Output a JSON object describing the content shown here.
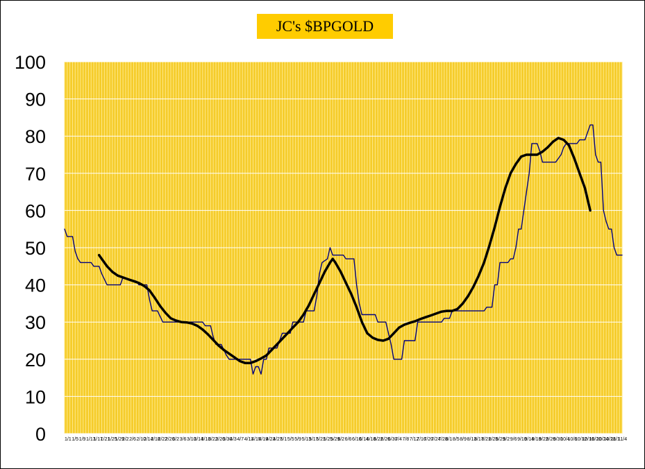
{
  "chart_data": {
    "type": "line",
    "title": "JC's $BPGOLD",
    "xlabel": "",
    "ylabel": "",
    "ylim": [
      0,
      100
    ],
    "yticks": [
      0,
      10,
      20,
      30,
      40,
      50,
      60,
      70,
      80,
      90,
      100
    ],
    "grid": true,
    "colors": {
      "plot_bg": "#f5cc2a",
      "vertical_grid": "#ffe98a",
      "horizontal_grid": "#ffffff",
      "thin_line": "#000080",
      "thick_line": "#000000",
      "title_bg": "#ffcc00"
    },
    "x_tick_labels": [
      "1/1",
      "1/5",
      "1/9",
      "1/13",
      "1/17",
      "1/21",
      "1/25",
      "1/29",
      "2/2",
      "2/6",
      "2/10",
      "2/14",
      "2/18",
      "2/22",
      "2/26",
      "3/2",
      "3/6",
      "3/10",
      "3/14",
      "3/18",
      "3/22",
      "3/26",
      "3/30",
      "4/3",
      "4/7",
      "4/11",
      "4/15",
      "4/19",
      "4/23",
      "4/27",
      "5/1",
      "5/5",
      "5/9",
      "5/13",
      "5/17",
      "5/21",
      "5/25",
      "5/29",
      "6/2",
      "6/6",
      "6/10",
      "6/14",
      "6/18",
      "6/22",
      "6/26",
      "6/30",
      "7/4",
      "7/8",
      "7/12",
      "7/16",
      "7/20",
      "7/24",
      "7/28",
      "8/1",
      "8/5",
      "8/9",
      "8/13",
      "8/17",
      "8/21",
      "8/25",
      "8/29",
      "9/2",
      "9/6",
      "9/10",
      "9/14",
      "9/18",
      "9/22",
      "9/26",
      "9/30",
      "10/4",
      "10/8",
      "10/12",
      "10/16",
      "10/20",
      "10/24",
      "10/28",
      "11/1",
      "11/4"
    ],
    "series": [
      {
        "style": "thin",
        "points": [
          [
            0,
            55
          ],
          [
            1,
            53
          ],
          [
            3,
            53
          ],
          [
            4,
            49
          ],
          [
            5,
            47
          ],
          [
            6,
            46
          ],
          [
            10,
            46
          ],
          [
            11,
            45
          ],
          [
            13,
            45
          ],
          [
            14,
            43
          ],
          [
            16,
            40
          ],
          [
            21,
            40
          ],
          [
            22,
            42
          ],
          [
            27,
            41
          ],
          [
            28,
            40
          ],
          [
            31,
            40
          ],
          [
            32,
            36
          ],
          [
            33,
            33
          ],
          [
            35,
            33
          ],
          [
            37,
            30
          ],
          [
            52,
            30
          ],
          [
            53,
            29
          ],
          [
            55,
            29
          ],
          [
            56,
            26
          ],
          [
            57,
            24
          ],
          [
            59,
            24
          ],
          [
            61,
            21
          ],
          [
            62,
            20
          ],
          [
            67,
            20
          ],
          [
            70,
            20
          ],
          [
            71,
            16
          ],
          [
            72,
            18
          ],
          [
            73,
            18
          ],
          [
            74,
            16
          ],
          [
            75,
            20
          ],
          [
            76,
            20
          ],
          [
            77,
            23
          ],
          [
            80,
            23
          ],
          [
            81,
            25
          ],
          [
            82,
            27
          ],
          [
            85,
            27
          ],
          [
            86,
            30
          ],
          [
            90,
            30
          ],
          [
            91,
            33
          ],
          [
            94,
            33
          ],
          [
            95,
            37
          ],
          [
            96,
            43
          ],
          [
            97,
            46
          ],
          [
            99,
            47
          ],
          [
            100,
            50
          ],
          [
            101,
            48
          ],
          [
            105,
            48
          ],
          [
            106,
            47
          ],
          [
            109,
            47
          ],
          [
            110,
            40
          ],
          [
            111,
            35
          ],
          [
            112,
            32
          ],
          [
            117,
            32
          ],
          [
            118,
            30
          ],
          [
            121,
            30
          ],
          [
            122,
            27
          ],
          [
            123,
            24
          ],
          [
            124,
            20
          ],
          [
            127,
            20
          ],
          [
            128,
            25
          ],
          [
            132,
            25
          ],
          [
            133,
            30
          ],
          [
            142,
            30
          ],
          [
            143,
            31
          ],
          [
            145,
            31
          ],
          [
            146,
            33
          ],
          [
            158,
            33
          ],
          [
            159,
            34
          ],
          [
            161,
            34
          ],
          [
            162,
            40
          ],
          [
            163,
            40
          ],
          [
            164,
            46
          ],
          [
            167,
            46
          ],
          [
            168,
            47
          ],
          [
            169,
            47
          ],
          [
            170,
            50
          ],
          [
            171,
            55
          ],
          [
            172,
            55
          ],
          [
            173,
            60
          ],
          [
            174,
            65
          ],
          [
            175,
            70
          ],
          [
            176,
            78
          ],
          [
            178,
            78
          ],
          [
            179,
            76
          ],
          [
            180,
            73
          ],
          [
            183,
            73
          ],
          [
            185,
            73
          ],
          [
            186,
            74
          ],
          [
            187,
            75
          ],
          [
            188,
            77
          ],
          [
            189,
            78
          ],
          [
            193,
            78
          ],
          [
            194,
            79
          ],
          [
            196,
            79
          ],
          [
            197,
            81
          ],
          [
            198,
            83
          ],
          [
            199,
            83
          ],
          [
            200,
            75
          ],
          [
            201,
            73
          ],
          [
            202,
            73
          ],
          [
            203,
            60
          ],
          [
            204,
            57
          ],
          [
            205,
            55
          ],
          [
            206,
            55
          ],
          [
            207,
            50
          ],
          [
            208,
            48
          ],
          [
            210,
            48
          ]
        ]
      },
      {
        "style": "thick",
        "points": [
          [
            13,
            48
          ],
          [
            14,
            47
          ],
          [
            16,
            45
          ],
          [
            18,
            43.5
          ],
          [
            20,
            42.5
          ],
          [
            22,
            42
          ],
          [
            24,
            41.5
          ],
          [
            26,
            41
          ],
          [
            28,
            40.5
          ],
          [
            30,
            39.7
          ],
          [
            32,
            38.5
          ],
          [
            34,
            36.5
          ],
          [
            36,
            34.3
          ],
          [
            38,
            32.5
          ],
          [
            40,
            31
          ],
          [
            42,
            30.4
          ],
          [
            44,
            30
          ],
          [
            46,
            29.9
          ],
          [
            48,
            29.6
          ],
          [
            50,
            29
          ],
          [
            52,
            28
          ],
          [
            54,
            26.7
          ],
          [
            56,
            25.2
          ],
          [
            58,
            23.7
          ],
          [
            60,
            22.5
          ],
          [
            62,
            21.5
          ],
          [
            64,
            20.5
          ],
          [
            66,
            19.5
          ],
          [
            68,
            19
          ],
          [
            70,
            19
          ],
          [
            72,
            19.5
          ],
          [
            74,
            20.2
          ],
          [
            76,
            21
          ],
          [
            78,
            22.5
          ],
          [
            80,
            24
          ],
          [
            82,
            25.5
          ],
          [
            84,
            27
          ],
          [
            86,
            28.5
          ],
          [
            88,
            30
          ],
          [
            90,
            32
          ],
          [
            92,
            34.5
          ],
          [
            94,
            37.5
          ],
          [
            96,
            40.5
          ],
          [
            98,
            43.5
          ],
          [
            100,
            46
          ],
          [
            101,
            47
          ],
          [
            102,
            46
          ],
          [
            104,
            43.5
          ],
          [
            106,
            40.5
          ],
          [
            108,
            37.5
          ],
          [
            110,
            34
          ],
          [
            112,
            30
          ],
          [
            114,
            27
          ],
          [
            116,
            25.8
          ],
          [
            118,
            25.2
          ],
          [
            120,
            25
          ],
          [
            122,
            25.5
          ],
          [
            124,
            27
          ],
          [
            126,
            28.5
          ],
          [
            128,
            29.3
          ],
          [
            130,
            29.8
          ],
          [
            132,
            30.2
          ],
          [
            134,
            30.8
          ],
          [
            136,
            31.3
          ],
          [
            138,
            31.8
          ],
          [
            140,
            32.3
          ],
          [
            142,
            32.8
          ],
          [
            144,
            33
          ],
          [
            146,
            33
          ],
          [
            148,
            33.5
          ],
          [
            150,
            35
          ],
          [
            152,
            37
          ],
          [
            154,
            39.5
          ],
          [
            156,
            42.5
          ],
          [
            158,
            46
          ],
          [
            160,
            50.5
          ],
          [
            162,
            55.5
          ],
          [
            164,
            61
          ],
          [
            166,
            66
          ],
          [
            168,
            70
          ],
          [
            170,
            72.5
          ],
          [
            172,
            74.5
          ],
          [
            174,
            75
          ],
          [
            176,
            75
          ],
          [
            178,
            75
          ],
          [
            180,
            75.8
          ],
          [
            182,
            77
          ],
          [
            184,
            78.5
          ],
          [
            186,
            79.5
          ],
          [
            188,
            79
          ],
          [
            190,
            77.5
          ],
          [
            192,
            74
          ],
          [
            194,
            70
          ],
          [
            196,
            66
          ],
          [
            198,
            60
          ]
        ]
      }
    ]
  }
}
